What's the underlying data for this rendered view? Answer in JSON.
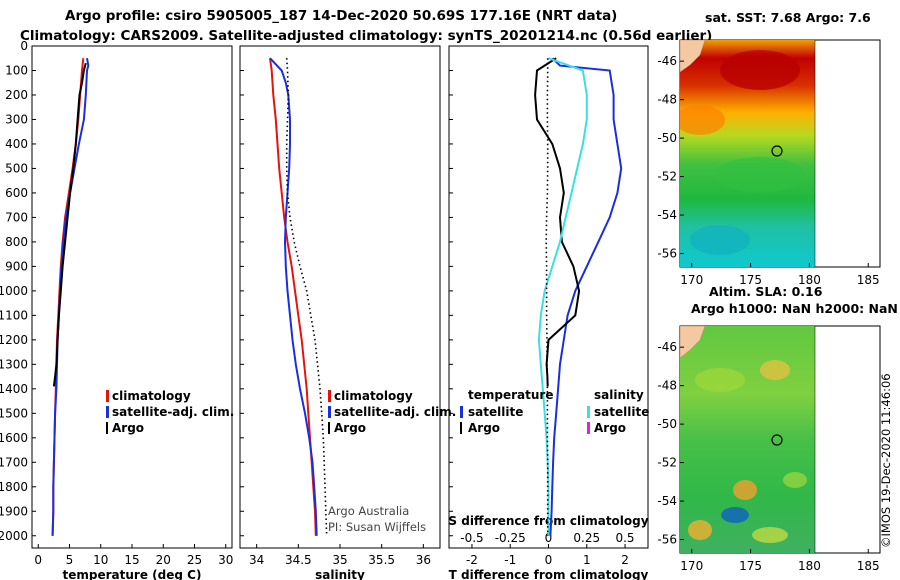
{
  "title_line1": "Argo profile: csiro 5905005_187 14-Dec-2020 50.69S 177.16E (NRT data)",
  "title_line2": "Climatology: CARS2009. Satellite-adjusted climatology: synTS_20201214.nc (0.56d earlier)",
  "map_top_title": "sat. SST: 7.68 Argo: 7.6",
  "map_bottom_title1": "Altim. SLA: 0.16",
  "map_bottom_title2": "Argo h1000: NaN h2000: NaN",
  "watermark": "©IMOS 19-Dec-2020 11:46:06",
  "credit1": "Argo Australia",
  "credit2": "PI: Susan Wijffels",
  "legend1": [
    "climatology",
    "satellite-adj. clim.",
    "Argo"
  ],
  "legend3": {
    "left_head": "temperature",
    "right_head": "salinity",
    "left": [
      "satellite",
      "Argo"
    ],
    "right": [
      "satellite",
      "Argo"
    ]
  },
  "colors": {
    "clim": "#e8120c",
    "sat": "#1a2ee0",
    "argo": "#000000",
    "sal_sat": "#38e0e6",
    "sal_argo": "#e020e0"
  },
  "chart_data": [
    {
      "type": "line",
      "id": "temp",
      "xlabel": "temperature (deg C)",
      "ylabel": "",
      "xlim": [
        -1,
        31
      ],
      "ylim": [
        2050,
        0
      ],
      "xticks": [
        0,
        5,
        10,
        15,
        20,
        25,
        30
      ],
      "yticks": [
        0,
        100,
        200,
        300,
        400,
        500,
        600,
        700,
        800,
        900,
        1000,
        1100,
        1200,
        1300,
        1400,
        1500,
        1600,
        1700,
        1800,
        1900,
        2000
      ],
      "series": [
        {
          "name": "climatology",
          "color": "#e8120c",
          "x": [
            7.2,
            7.0,
            6.7,
            6.4,
            6.0,
            5.5,
            4.9,
            4.3,
            3.9,
            3.6,
            3.4,
            3.2,
            3.0,
            2.9,
            2.8,
            2.7,
            2.6,
            2.5,
            2.4,
            2.4,
            2.3
          ],
          "y": [
            50,
            100,
            200,
            300,
            400,
            500,
            600,
            700,
            800,
            900,
            1000,
            1100,
            1200,
            1300,
            1400,
            1500,
            1600,
            1700,
            1800,
            1900,
            2000
          ]
        },
        {
          "name": "satellite-adj. clim.",
          "color": "#1a2ee0",
          "x": [
            7.8,
            8.0,
            7.8,
            7.6,
            7.3,
            6.5,
            5.8,
            5.1,
            4.4,
            4.0,
            3.7,
            3.5,
            3.3,
            3.1,
            3.0,
            2.9,
            2.7,
            2.6,
            2.5,
            2.4,
            2.4,
            2.3
          ],
          "y": [
            50,
            80,
            100,
            200,
            300,
            400,
            500,
            600,
            700,
            800,
            900,
            1000,
            1100,
            1200,
            1300,
            1400,
            1500,
            1600,
            1700,
            1800,
            1900,
            2000
          ]
        },
        {
          "name": "Argo",
          "color": "#000000",
          "x": [
            7.6,
            7.3,
            7.0,
            6.6,
            6.3,
            6.0,
            5.6,
            5.1,
            4.7,
            4.3,
            3.9,
            3.6,
            3.3,
            3.1,
            2.9,
            2.7,
            2.5
          ],
          "y": [
            70,
            100,
            150,
            200,
            300,
            400,
            500,
            600,
            700,
            800,
            900,
            1000,
            1100,
            1200,
            1300,
            1350,
            1390
          ]
        }
      ]
    },
    {
      "type": "line",
      "id": "sal",
      "xlabel": "salinity",
      "ylabel": "",
      "xlim": [
        33.8,
        36.2
      ],
      "ylim": [
        2050,
        0
      ],
      "xticks": [
        34,
        34.5,
        35,
        35.5,
        36
      ],
      "xticklabels": [
        "34",
        "34.5",
        "35",
        "35.5",
        "36"
      ],
      "series": [
        {
          "name": "climatology",
          "color": "#e8120c",
          "x": [
            34.16,
            34.18,
            34.2,
            34.23,
            34.25,
            34.27,
            34.3,
            34.33,
            34.37,
            34.42,
            34.46,
            34.5,
            34.54,
            34.57,
            34.6,
            34.62,
            34.64,
            34.66,
            34.68,
            34.7,
            34.71
          ],
          "y": [
            50,
            100,
            200,
            300,
            400,
            500,
            600,
            700,
            800,
            900,
            1000,
            1100,
            1200,
            1300,
            1400,
            1500,
            1600,
            1700,
            1800,
            1900,
            2000
          ]
        },
        {
          "name": "satellite-adj. clim.",
          "color": "#1a2ee0",
          "x": [
            34.16,
            34.3,
            34.35,
            34.38,
            34.4,
            34.4,
            34.39,
            34.37,
            34.35,
            34.34,
            34.35,
            34.37,
            34.4,
            34.43,
            34.47,
            34.52,
            34.58,
            34.63,
            34.67,
            34.69,
            34.71,
            34.72
          ],
          "y": [
            50,
            100,
            150,
            200,
            300,
            400,
            500,
            600,
            700,
            800,
            900,
            1000,
            1100,
            1200,
            1300,
            1400,
            1500,
            1600,
            1700,
            1800,
            1900,
            2000
          ]
        },
        {
          "name": "",
          "color": "#000000",
          "dotted": true,
          "x": [
            34.36,
            34.37,
            34.38,
            34.37,
            34.36,
            34.36,
            34.37,
            34.4,
            34.45,
            34.52,
            34.6,
            34.65,
            34.7,
            34.73,
            34.76,
            34.78,
            34.8,
            34.81,
            34.82,
            34.83,
            34.84
          ],
          "y": [
            50,
            100,
            200,
            300,
            400,
            500,
            600,
            700,
            800,
            900,
            1000,
            1100,
            1200,
            1300,
            1400,
            1500,
            1600,
            1700,
            1800,
            1900,
            2000
          ]
        }
      ]
    },
    {
      "type": "line",
      "id": "diff",
      "xlabel": "T difference from climatology",
      "xlabel2": "S difference from climatology",
      "xlim": [
        -2.6,
        2.6
      ],
      "ylim": [
        2050,
        0
      ],
      "xticks": [
        -2,
        -1,
        0,
        1,
        2
      ],
      "xticks2": [
        -0.5,
        -0.25,
        0,
        0.25,
        0.5
      ],
      "xticks2labels": [
        "-0.5",
        "-0.25",
        "0",
        "0.25",
        "0.5"
      ],
      "series": [
        {
          "name": "temperature satellite",
          "color": "#1a2ee0",
          "x": [
            0.1,
            0.3,
            1.6,
            1.7,
            1.7,
            1.8,
            1.9,
            1.8,
            1.6,
            1.3,
            1.0,
            0.7,
            0.5,
            0.4,
            0.3,
            0.25,
            0.2,
            0.15,
            0.12,
            0.1,
            0.08,
            0.05
          ],
          "y": [
            50,
            80,
            100,
            200,
            300,
            400,
            500,
            600,
            700,
            800,
            900,
            1000,
            1100,
            1200,
            1300,
            1400,
            1500,
            1600,
            1700,
            1800,
            1900,
            2000
          ]
        },
        {
          "name": "temperature Argo",
          "color": "#000000",
          "x": [
            0.2,
            -0.3,
            -0.35,
            -0.3,
            0.1,
            0.3,
            0.4,
            0.3,
            0.35,
            0.65,
            0.8,
            0.7,
            0.0,
            -0.05,
            -0.03,
            -0.02
          ],
          "y": [
            50,
            100,
            200,
            300,
            400,
            500,
            600,
            700,
            800,
            900,
            1000,
            1100,
            1200,
            1300,
            1350,
            1390
          ]
        },
        {
          "name": "salinity satellite",
          "color": "#38e0e6",
          "x": [
            0.0,
            0.9,
            1.0,
            1.0,
            0.9,
            0.75,
            0.6,
            0.45,
            0.3,
            0.1,
            -0.1,
            -0.2,
            -0.25,
            -0.2,
            -0.15,
            -0.1,
            -0.05,
            -0.02,
            0.0,
            0.0,
            0.0
          ],
          "y": [
            50,
            100,
            200,
            300,
            400,
            500,
            600,
            700,
            800,
            900,
            1000,
            1100,
            1200,
            1300,
            1400,
            1500,
            1600,
            1700,
            1800,
            1900,
            2000
          ]
        },
        {
          "name": "",
          "color": "#000000",
          "dotted": true,
          "x": [
            -0.02,
            -0.02,
            -0.03,
            -0.03,
            -0.02,
            -0.02,
            -0.03,
            -0.05,
            -0.06,
            -0.05,
            -0.05,
            -0.05,
            -0.04,
            -0.04,
            -0.03,
            -0.03,
            -0.03,
            -0.02,
            -0.02,
            -0.02,
            -0.02
          ],
          "y": [
            50,
            100,
            200,
            300,
            400,
            500,
            600,
            700,
            800,
            900,
            1000,
            1100,
            1200,
            1300,
            1400,
            1500,
            1600,
            1700,
            1800,
            1900,
            2000
          ]
        }
      ]
    },
    {
      "type": "heatmap",
      "id": "map_sst",
      "title": "sat. SST: 7.68 Argo: 7.6",
      "xlim": [
        169,
        186
      ],
      "ylim": [
        -56.7,
        -44.9
      ],
      "xticks": [
        170,
        175,
        180,
        185
      ],
      "yticks": [
        -46,
        -48,
        -50,
        -52,
        -54,
        -56
      ],
      "marker": {
        "lon": 177.16,
        "lat": -50.69
      }
    },
    {
      "type": "heatmap",
      "id": "map_sla",
      "title": "Altim. SLA: 0.16",
      "xlim": [
        169,
        186
      ],
      "ylim": [
        -56.7,
        -44.9
      ],
      "xticks": [
        170,
        175,
        180,
        185
      ],
      "yticks": [
        -46,
        -48,
        -50,
        -52,
        -54,
        -56
      ],
      "marker": {
        "lon": 177.16,
        "lat": -50.69
      }
    }
  ]
}
